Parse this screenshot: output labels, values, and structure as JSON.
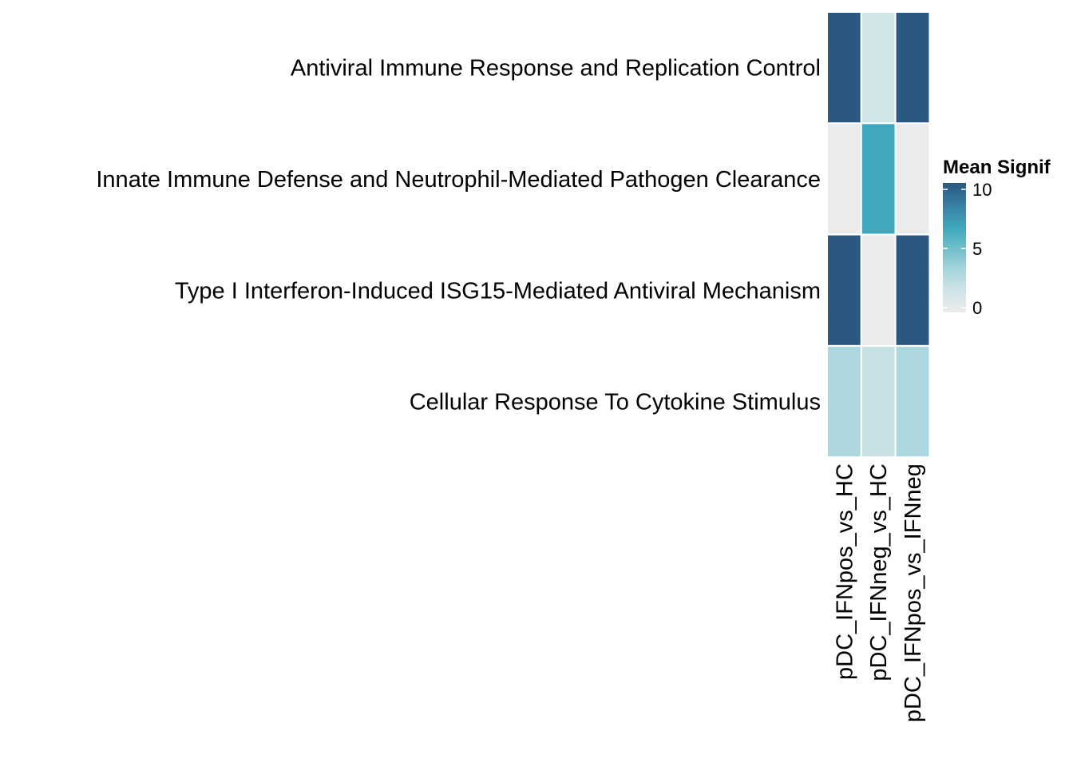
{
  "chart_data": {
    "type": "heatmap",
    "title": "",
    "xlabel": "",
    "ylabel": "",
    "rows": [
      "Antiviral Immune Response and Replication Control",
      "Innate Immune Defense and Neutrophil-Mediated Pathogen Clearance",
      "Type I Interferon-Induced ISG15-Mediated Antiviral Mechanism",
      "Cellular Response To Cytokine Stimulus"
    ],
    "columns": [
      "pDC_IFNpos_vs_HC",
      "pDC_IFNneg_vs_HC",
      "pDC_IFNpos_vs_IFNneg"
    ],
    "values": [
      [
        10,
        1.5,
        10
      ],
      [
        0,
        6.5,
        0
      ],
      [
        10,
        0,
        10
      ],
      [
        3.0,
        2.0,
        3.0
      ]
    ],
    "legend": {
      "title": "Mean Signif",
      "ticks": [
        0,
        5,
        10
      ],
      "range": [
        0,
        10
      ],
      "position": "right"
    },
    "colorscale": [
      {
        "value": 0,
        "color": "#ebebeb"
      },
      {
        "value": 2,
        "color": "#c8e1e5"
      },
      {
        "value": 3.5,
        "color": "#9fd2da"
      },
      {
        "value": 6.5,
        "color": "#3fa8bc"
      },
      {
        "value": 8,
        "color": "#3a86a8"
      },
      {
        "value": 10,
        "color": "#2a5880"
      }
    ]
  }
}
